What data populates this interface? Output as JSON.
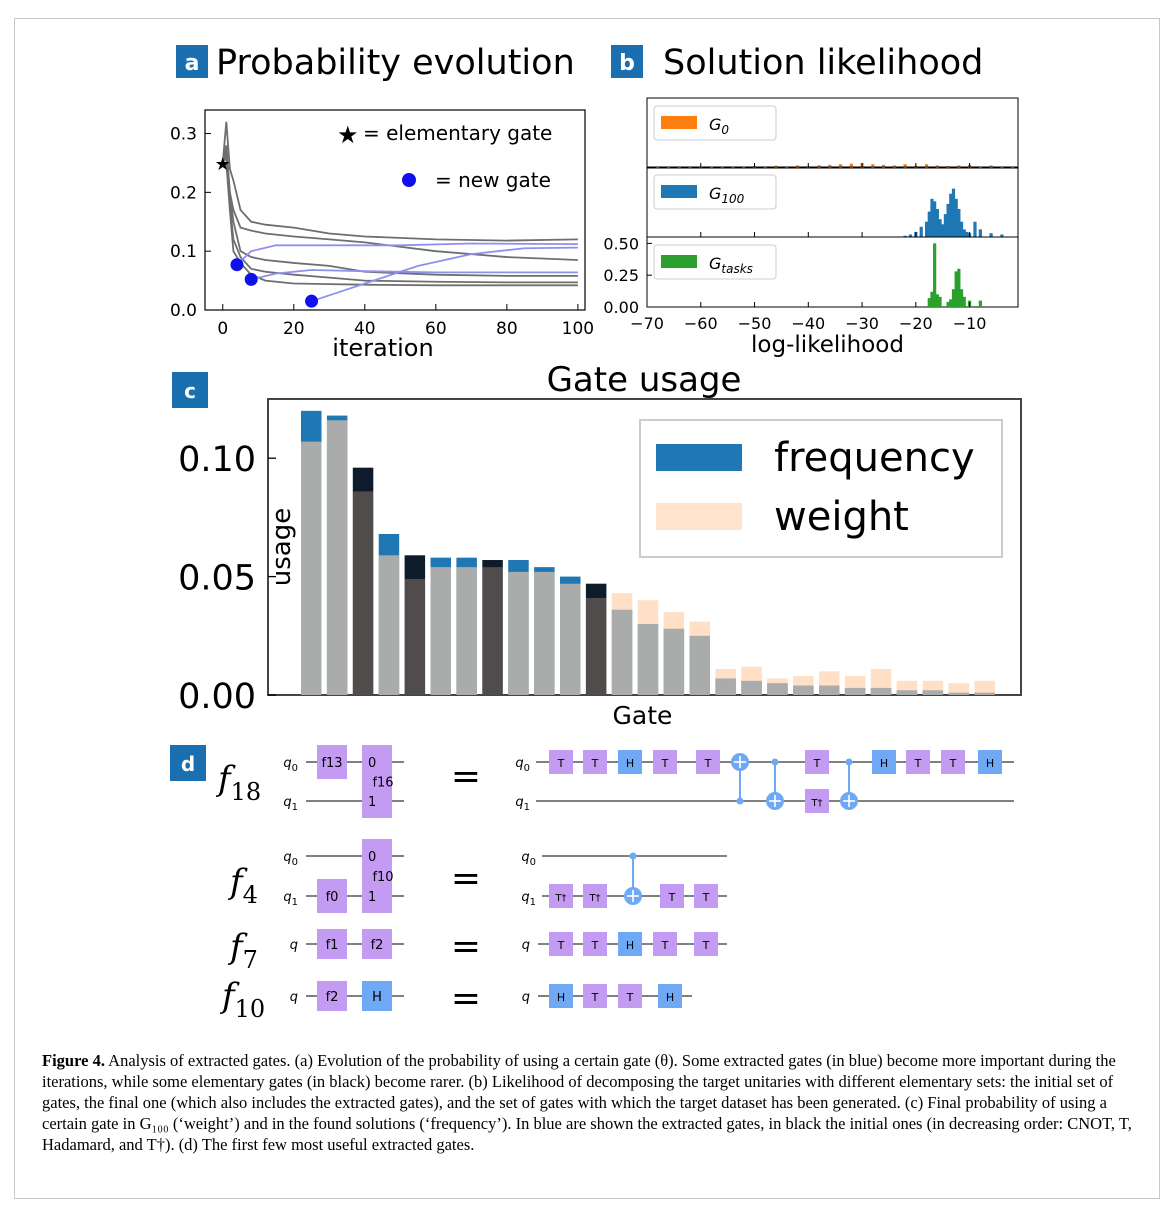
{
  "panels": {
    "a": {
      "badge": "a",
      "title": "Probability evolution"
    },
    "b": {
      "badge": "b",
      "title": "Solution likelihood"
    },
    "c": {
      "badge": "c",
      "title": "Gate usage"
    },
    "d": {
      "badge": "d"
    }
  },
  "colors": {
    "badge": "#1a6fb0",
    "blue": "#1f77b4",
    "orange": "#ff7f0e",
    "green": "#2ca02c",
    "peach": "#ffe3cc",
    "dark": "#0d1b2a",
    "gateT": "#c39bf3",
    "gateH": "#6fa8f5",
    "cnot": "#6fa8f5"
  },
  "chart_data": [
    {
      "type": "line",
      "title": "Probability evolution",
      "xlabel": "iteration",
      "ylabel": "",
      "xlim": [
        -5,
        102
      ],
      "ylim": [
        0,
        0.34
      ],
      "xticks": [
        "0",
        "20",
        "40",
        "60",
        "80",
        "100"
      ],
      "yticks": [
        "0.0",
        "0.1",
        "0.2",
        "0.3"
      ],
      "legend": [
        {
          "marker": "★",
          "label": "= elementary gate"
        },
        {
          "marker": "●",
          "label": "= new gate"
        }
      ],
      "series": [
        {
          "group": "elementary",
          "x": [
            0,
            1,
            2,
            3,
            5,
            8,
            12,
            20,
            30,
            40,
            60,
            80,
            100
          ],
          "y": [
            0.25,
            0.32,
            0.24,
            0.22,
            0.17,
            0.15,
            0.145,
            0.14,
            0.13,
            0.125,
            0.12,
            0.118,
            0.12
          ]
        },
        {
          "group": "elementary",
          "x": [
            0,
            1,
            2,
            3,
            5,
            8,
            12,
            20,
            30,
            40,
            60,
            80,
            100
          ],
          "y": [
            0.25,
            0.28,
            0.2,
            0.17,
            0.14,
            0.135,
            0.13,
            0.125,
            0.12,
            0.115,
            0.1,
            0.09,
            0.085
          ]
        },
        {
          "group": "elementary",
          "x": [
            0,
            1,
            2,
            3,
            5,
            8,
            12,
            20,
            30,
            40,
            60,
            80,
            100
          ],
          "y": [
            0.25,
            0.27,
            0.2,
            0.15,
            0.1,
            0.09,
            0.085,
            0.08,
            0.075,
            0.065,
            0.06,
            0.058,
            0.058
          ]
        },
        {
          "group": "elementary",
          "x": [
            0,
            1,
            2,
            3,
            5,
            8,
            12,
            20,
            30,
            40,
            60,
            80,
            100
          ],
          "y": [
            0.25,
            0.26,
            0.18,
            0.12,
            0.09,
            0.07,
            0.065,
            0.06,
            0.055,
            0.05,
            0.048,
            0.047,
            0.047
          ]
        },
        {
          "group": "elementary",
          "x": [
            0,
            1,
            2,
            3,
            5,
            8,
            12,
            20,
            30,
            40,
            60,
            80,
            100
          ],
          "y": [
            0.25,
            0.25,
            0.17,
            0.1,
            0.08,
            0.06,
            0.05,
            0.045,
            0.044,
            0.043,
            0.042,
            0.042,
            0.042
          ]
        },
        {
          "group": "new",
          "x": [
            4,
            8,
            15,
            30,
            50,
            70,
            100
          ],
          "y": [
            0.077,
            0.1,
            0.11,
            0.11,
            0.11,
            0.113,
            0.112
          ]
        },
        {
          "group": "new",
          "x": [
            8,
            15,
            25,
            40,
            60,
            80,
            100
          ],
          "y": [
            0.052,
            0.062,
            0.068,
            0.066,
            0.064,
            0.064,
            0.064
          ]
        },
        {
          "group": "new",
          "x": [
            25,
            30,
            40,
            55,
            70,
            85,
            100
          ],
          "y": [
            0.015,
            0.025,
            0.045,
            0.075,
            0.095,
            0.105,
            0.106
          ]
        }
      ],
      "markers": [
        {
          "kind": "star",
          "x": 0,
          "y": 0.25
        },
        {
          "kind": "dot",
          "x": 4,
          "y": 0.077
        },
        {
          "kind": "dot",
          "x": 8,
          "y": 0.052
        },
        {
          "kind": "dot",
          "x": 25,
          "y": 0.015
        }
      ]
    },
    {
      "type": "bar",
      "title": "Solution likelihood",
      "xlabel": "log-likelihood",
      "xlim": [
        -70,
        -1
      ],
      "ylim": [
        0,
        0.55
      ],
      "xticks": [
        "−70",
        "−60",
        "−50",
        "−40",
        "−30",
        "−20",
        "−10"
      ],
      "yticks": [
        "0.00",
        "0.25",
        "0.50"
      ],
      "series": [
        {
          "name": "G",
          "sub": "0",
          "color": "#ff7f0e",
          "x": [
            -68,
            -66,
            -64,
            -62,
            -60,
            -58,
            -56,
            -54,
            -52,
            -50,
            -48,
            -46,
            -44,
            -42,
            -40,
            -38,
            -36,
            -34,
            -32,
            -30,
            -28,
            -26,
            -24,
            -22,
            -20,
            -18,
            -16,
            -14,
            -12,
            -10,
            -8,
            -6,
            -4,
            -2
          ],
          "values": [
            0.004,
            0.006,
            0.005,
            0.008,
            0.006,
            0.01,
            0.007,
            0.012,
            0.009,
            0.015,
            0.011,
            0.018,
            0.012,
            0.02,
            0.015,
            0.022,
            0.025,
            0.03,
            0.035,
            0.04,
            0.03,
            0.025,
            0.02,
            0.03,
            0.018,
            0.03,
            0.02,
            0.015,
            0.02,
            0.025,
            0.012,
            0.02,
            0.008,
            0.01
          ]
        },
        {
          "name": "G",
          "sub": "100",
          "color": "#1f77b4",
          "x": [
            -22,
            -21,
            -20,
            -19,
            -18,
            -17.5,
            -17,
            -16.5,
            -16,
            -15.5,
            -15,
            -14.5,
            -14,
            -13.5,
            -13,
            -12.5,
            -12,
            -11.5,
            -11,
            -10.5,
            -10,
            -9,
            -8,
            -6,
            -4
          ],
          "values": [
            0.01,
            0.02,
            0.04,
            0.08,
            0.12,
            0.2,
            0.3,
            0.28,
            0.22,
            0.14,
            0.1,
            0.18,
            0.26,
            0.34,
            0.38,
            0.3,
            0.22,
            0.12,
            0.06,
            0.04,
            0.03,
            0.12,
            0.06,
            0.03,
            0.02
          ]
        },
        {
          "name": "G",
          "sub": "tasks",
          "color": "#2ca02c",
          "x": [
            -17.5,
            -17,
            -16.5,
            -16,
            -15.5,
            -14,
            -13.5,
            -13,
            -12.5,
            -12,
            -11.5,
            -11,
            -10,
            -8
          ],
          "values": [
            0.07,
            0.12,
            0.5,
            0.1,
            0.08,
            0.04,
            0.06,
            0.14,
            0.28,
            0.3,
            0.14,
            0.08,
            0.05,
            0.05
          ]
        }
      ]
    },
    {
      "type": "bar",
      "title": "Gate usage",
      "xlabel": "Gate",
      "ylabel": "usage",
      "ylim": [
        0,
        0.125
      ],
      "yticks": [
        "0.00",
        "0.05",
        "0.10"
      ],
      "legend": [
        "frequency",
        "weight"
      ],
      "series": [
        {
          "name": "frequency",
          "values": [
            0.12,
            0.118,
            0.096,
            0.068,
            0.059,
            0.058,
            0.058,
            0.057,
            0.057,
            0.054,
            0.05,
            0.047,
            0.036,
            0.03,
            0.028,
            0.025,
            0.007,
            0.006,
            0.005,
            0.004,
            0.004,
            0.003,
            0.003,
            0.002,
            0.002,
            0.001,
            0.001
          ]
        },
        {
          "name": "weight",
          "values": [
            0.107,
            0.116,
            0.086,
            0.059,
            0.049,
            0.054,
            0.054,
            0.054,
            0.052,
            0.052,
            0.047,
            0.041,
            0.043,
            0.04,
            0.035,
            0.031,
            0.011,
            0.012,
            0.007,
            0.008,
            0.01,
            0.008,
            0.011,
            0.006,
            0.006,
            0.005,
            0.006
          ]
        }
      ],
      "initial_gate_indices": [
        2,
        4,
        7,
        11
      ]
    }
  ],
  "circuits": [
    {
      "label": "f",
      "sub": "18",
      "lhs": {
        "wires": [
          "q",
          "q"
        ],
        "wire_subs": [
          "0",
          "1"
        ],
        "boxes": [
          {
            "text": "f13"
          },
          {
            "text": "f16",
            "ports": [
              "0",
              "1"
            ]
          }
        ]
      },
      "rhs": {
        "wires": [
          "q",
          "q"
        ],
        "wire_subs": [
          "0",
          "1"
        ],
        "top": [
          "T",
          "T",
          "H",
          "T",
          "T",
          "",
          "",
          "T",
          "",
          "H",
          "T",
          "T",
          "H"
        ],
        "bottom_dagger": "T†"
      }
    },
    {
      "label": "f",
      "sub": "4",
      "lhs": {
        "wires": [
          "q",
          "q"
        ],
        "wire_subs": [
          "0",
          "1"
        ],
        "boxes": [
          {
            "text": "f0"
          },
          {
            "text": "f10",
            "ports": [
              "0",
              "1"
            ]
          }
        ]
      },
      "rhs": {
        "wires": [
          "q",
          "q"
        ],
        "wire_subs": [
          "0",
          "1"
        ],
        "bottom": [
          "T†",
          "T†",
          "",
          "T",
          "T"
        ]
      }
    },
    {
      "label": "f",
      "sub": "7",
      "lhs": {
        "wires": [
          "q"
        ],
        "boxes": [
          {
            "text": "f1"
          },
          {
            "text": "f2"
          }
        ]
      },
      "rhs": {
        "wires": [
          "q"
        ],
        "gates": [
          "T",
          "T",
          "H",
          "T",
          "T"
        ]
      }
    },
    {
      "label": "f",
      "sub": "10",
      "lhs": {
        "wires": [
          "q"
        ],
        "boxes": [
          {
            "text": "f2"
          },
          {
            "text": "H"
          }
        ]
      },
      "rhs": {
        "wires": [
          "q"
        ],
        "gates": [
          "H",
          "T",
          "T",
          "H"
        ]
      }
    }
  ],
  "equals": "=",
  "caption": {
    "label": "Figure 4.",
    "text": " Analysis of extracted gates. (a) Evolution of the probability of using a certain gate (θ). Some extracted gates (in blue) become more important during the iterations, while some elementary gates (in black) become rarer. (b) Likelihood of decomposing the target unitaries with different elementary sets: the initial set of gates, the final one (which also includes the extracted gates), and the set of gates with which the target dataset has been generated. (c) Final probability of using a certain gate in G₁₀₀ (‘weight’) and in the found solutions (‘frequency’). In blue are shown the extracted gates, in black the initial ones (in decreasing order: CNOT, T, Hadamard, and T†). (d) The first few most useful extracted gates."
  }
}
